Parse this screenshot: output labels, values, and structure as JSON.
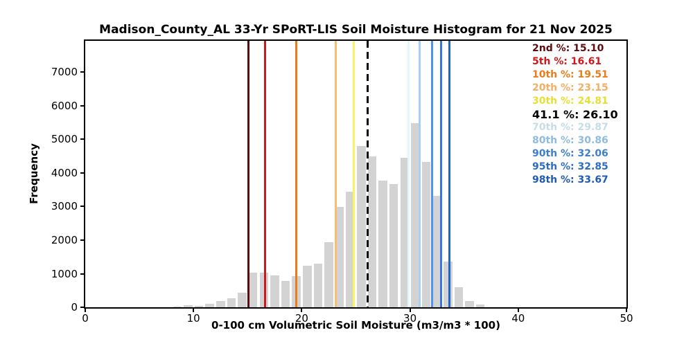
{
  "title": "Madison_County_AL 33-Yr SPoRT-LIS Soil Moisture Histogram for 21 Nov 2025",
  "chart_data": {
    "type": "bar",
    "title": "Madison_County_AL 33-Yr SPoRT-LIS Soil Moisture Histogram for 21 Nov 2025",
    "xlabel": "0-100 cm Volumetric Soil Moisture (m3/m3 * 100)",
    "ylabel": "Frequency",
    "xlim": [
      0,
      50
    ],
    "ylim": [
      0,
      7930
    ],
    "x_ticks": [
      0,
      10,
      20,
      30,
      40,
      50
    ],
    "y_ticks": [
      0,
      1000,
      2000,
      3000,
      4000,
      5000,
      6000,
      7000
    ],
    "grid": false,
    "legend_position": "top-right",
    "bar_color": "#d3d3d3",
    "bin_width": 1.0,
    "bar_width": 0.8,
    "bin_centers": [
      8.5,
      9.5,
      10.5,
      11.5,
      12.5,
      13.5,
      14.5,
      15.5,
      16.5,
      17.5,
      18.5,
      19.5,
      20.5,
      21.5,
      22.5,
      23.5,
      24.5,
      25.5,
      26.5,
      27.5,
      28.5,
      29.5,
      30.5,
      31.5,
      32.5,
      33.5,
      34.5,
      35.5,
      36.5
    ],
    "frequencies": [
      30,
      70,
      40,
      110,
      180,
      270,
      440,
      1030,
      1040,
      950,
      780,
      930,
      1240,
      1300,
      1930,
      2980,
      3440,
      4790,
      4490,
      3780,
      3670,
      4440,
      5480,
      4330,
      3310,
      1360,
      600,
      190,
      80
    ],
    "percentile_lines": [
      {
        "label": "2nd %",
        "value": 15.1,
        "value_str": "15.10",
        "color": "#5E0B10",
        "text_color": "#5E0B10",
        "style": "solid",
        "emphasis": false
      },
      {
        "label": "5th %",
        "value": 16.61,
        "value_str": "16.61",
        "color": "#CE181B",
        "text_color": "#CE181B",
        "style": "solid",
        "emphasis": false
      },
      {
        "label": "10th %",
        "value": 19.51,
        "value_str": "19.51",
        "color": "#E87E1B",
        "text_color": "#E87E1B",
        "style": "solid",
        "emphasis": false
      },
      {
        "label": "20th %",
        "value": 23.15,
        "value_str": "23.15",
        "color": "#FBBC72",
        "text_color": "#F5AE62",
        "style": "solid",
        "emphasis": false
      },
      {
        "label": "30th %",
        "value": 24.81,
        "value_str": "24.81",
        "color": "#F9F55E",
        "text_color": "#E6DF3A",
        "style": "solid",
        "emphasis": false
      },
      {
        "label": "41.1 %",
        "value": 26.1,
        "value_str": "26.10",
        "color": "#000000",
        "text_color": "#000000",
        "style": "dashed",
        "emphasis": true
      },
      {
        "label": "70th %",
        "value": 29.87,
        "value_str": "29.87",
        "color": "#E2F7FA",
        "text_color": "#C6DDE8",
        "style": "solid",
        "emphasis": false
      },
      {
        "label": "80th %",
        "value": 30.86,
        "value_str": "30.86",
        "color": "#A8CFF0",
        "text_color": "#8FBBE0",
        "style": "solid",
        "emphasis": false
      },
      {
        "label": "90th %",
        "value": 32.06,
        "value_str": "32.06",
        "color": "#4E95E9",
        "text_color": "#3D7FCB",
        "style": "solid",
        "emphasis": false
      },
      {
        "label": "95th %",
        "value": 32.85,
        "value_str": "32.85",
        "color": "#3378DC",
        "text_color": "#2D6CC6",
        "style": "solid",
        "emphasis": false
      },
      {
        "label": "98th %",
        "value": 33.67,
        "value_str": "33.67",
        "color": "#2065C9",
        "text_color": "#1F5BB4",
        "style": "solid",
        "emphasis": false
      }
    ]
  }
}
